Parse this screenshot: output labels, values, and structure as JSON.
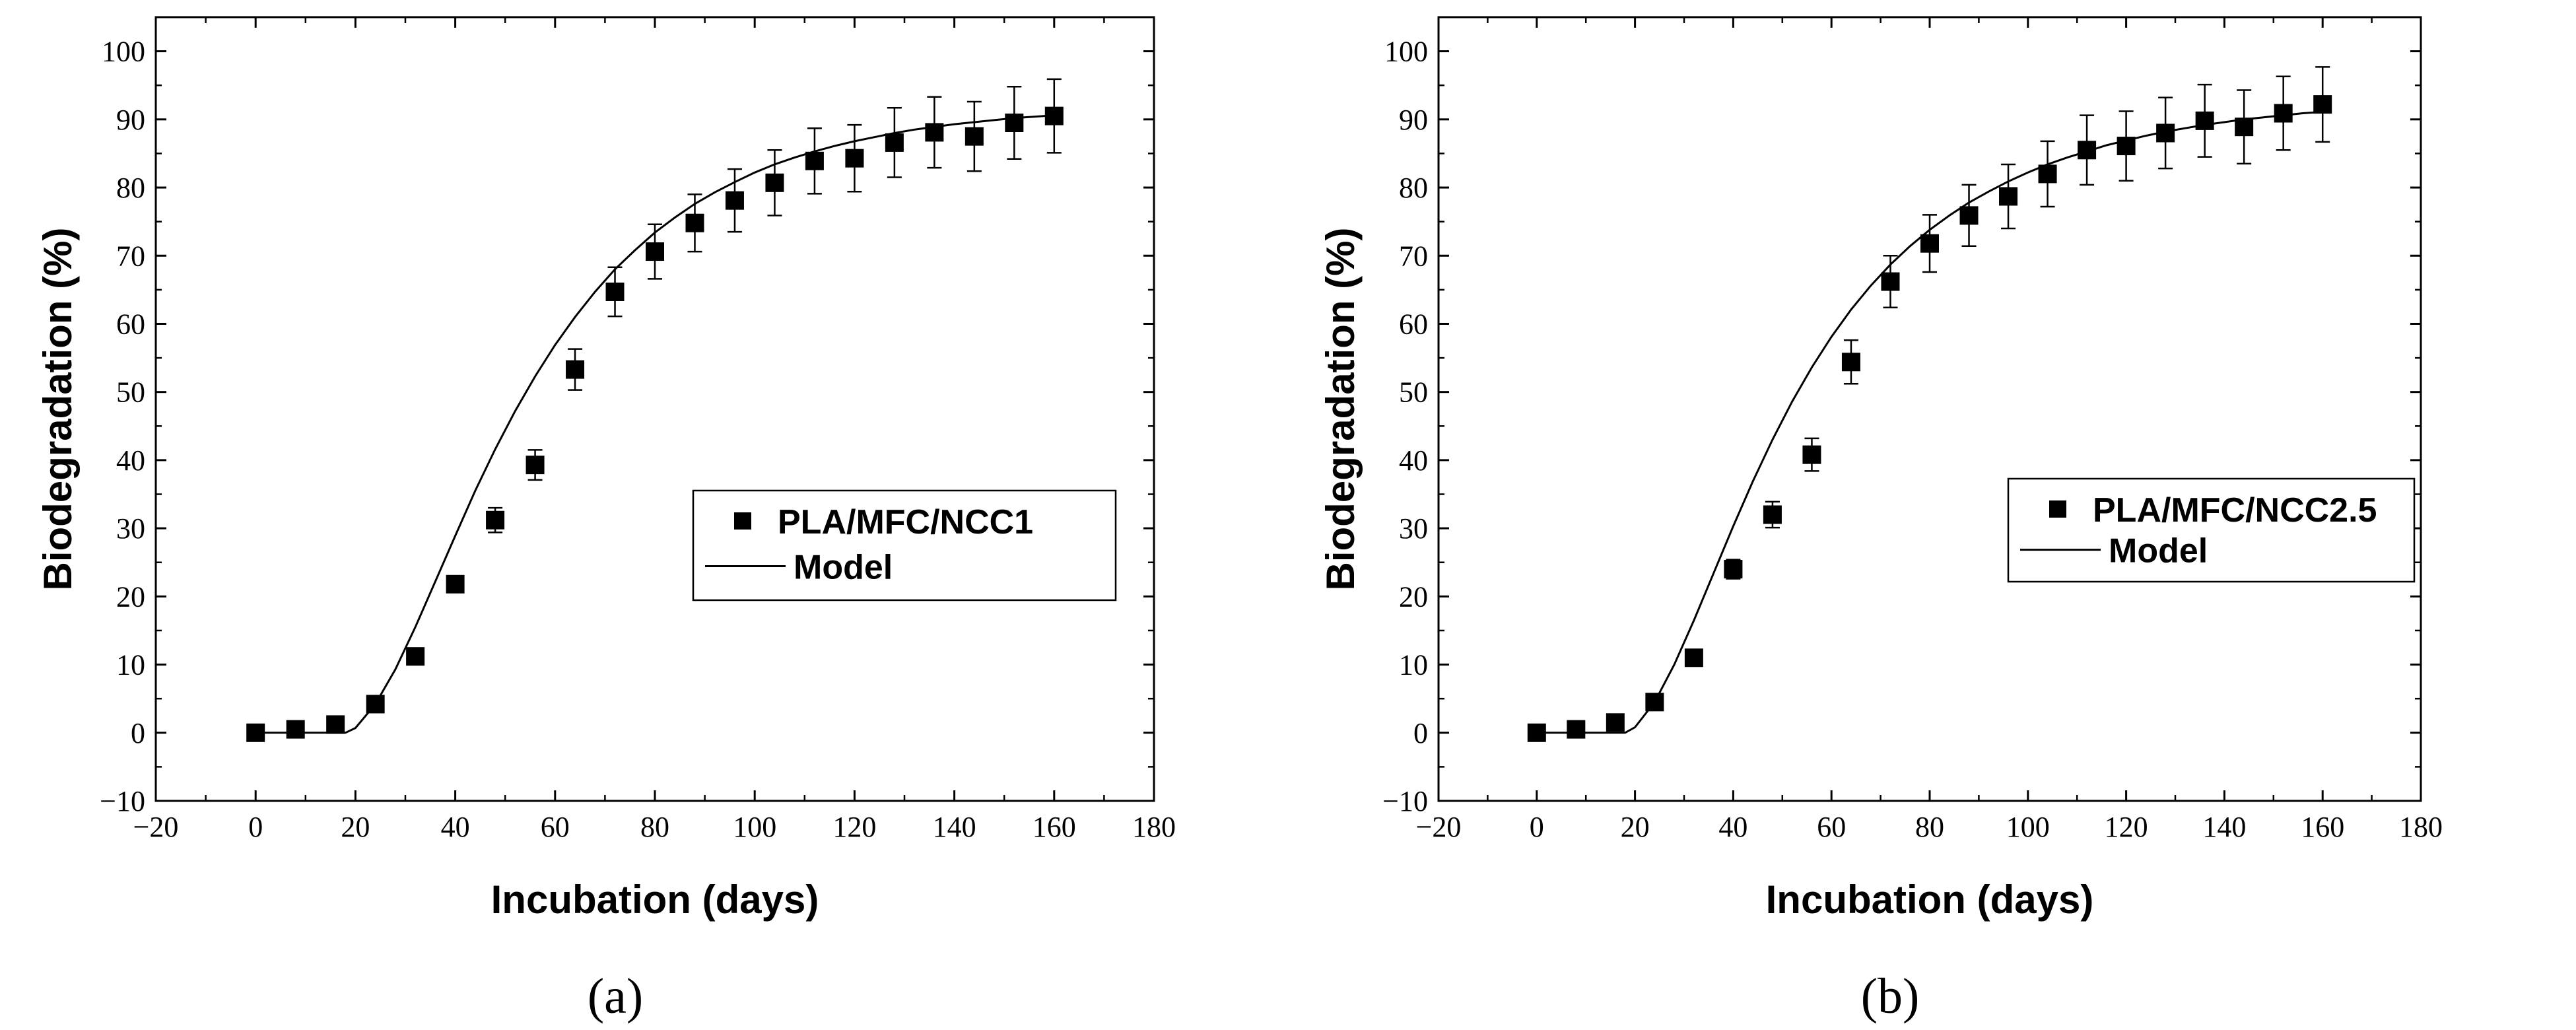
{
  "chart_data": [
    {
      "type": "scatter",
      "panel_label": "(a)",
      "xlabel": "Incubation (days)",
      "ylabel": "Biodegradation (%)",
      "xlim": [
        -20,
        180
      ],
      "ylim": [
        -10,
        105
      ],
      "xticks": [
        -20,
        0,
        20,
        40,
        60,
        80,
        100,
        120,
        140,
        160,
        180
      ],
      "xtick_labels": [
        "−20",
        "0",
        "20",
        "40",
        "60",
        "80",
        "100",
        "120",
        "140",
        "160",
        "180"
      ],
      "yticks": [
        -10,
        0,
        10,
        20,
        30,
        40,
        50,
        60,
        70,
        80,
        90,
        100
      ],
      "ytick_labels": [
        "−10",
        "0",
        "10",
        "20",
        "30",
        "40",
        "50",
        "60",
        "70",
        "80",
        "90",
        "100"
      ],
      "legend_position": "center-right",
      "series": [
        {
          "name": "PLA/MFC/NCC1",
          "kind": "scatter-errorbar",
          "x": [
            0,
            8,
            16,
            24,
            32,
            40,
            48,
            56,
            64,
            72,
            80,
            88,
            96,
            104,
            112,
            120,
            128,
            136,
            144,
            152,
            160
          ],
          "y": [
            0,
            0.5,
            1.2,
            4.2,
            11.2,
            21.8,
            31.2,
            39.3,
            53.3,
            64.7,
            70.6,
            74.8,
            78.1,
            80.7,
            83.9,
            84.3,
            86.6,
            88.1,
            87.5,
            89.5,
            90.5
          ],
          "err": [
            0,
            0,
            0,
            0,
            0.8,
            1.2,
            1.8,
            2.2,
            3.0,
            3.6,
            4.0,
            4.2,
            4.6,
            4.8,
            4.8,
            4.9,
            5.1,
            5.2,
            5.1,
            5.3,
            5.4
          ]
        },
        {
          "name": "Model",
          "kind": "line",
          "x": [
            0,
            8,
            16,
            18,
            20,
            24,
            28,
            32,
            36,
            40,
            44,
            48,
            52,
            56,
            60,
            64,
            68,
            72,
            76,
            80,
            84,
            88,
            92,
            96,
            100,
            104,
            108,
            112,
            116,
            120,
            124,
            128,
            132,
            136,
            140,
            144,
            148,
            152,
            156,
            160
          ],
          "y": [
            0,
            0,
            0,
            0,
            0.7,
            4.2,
            9.3,
            15.5,
            22.2,
            28.9,
            35.5,
            41.6,
            47.2,
            52.3,
            56.9,
            61.0,
            64.7,
            68.0,
            70.8,
            73.4,
            75.6,
            77.6,
            79.3,
            80.8,
            82.2,
            83.4,
            84.4,
            85.3,
            86.1,
            86.8,
            87.4,
            88.0,
            88.5,
            88.9,
            89.3,
            89.6,
            89.9,
            90.2,
            90.4,
            90.6
          ]
        }
      ]
    },
    {
      "type": "scatter",
      "panel_label": "(b)",
      "xlabel": "Incubation (days)",
      "ylabel": "Biodegradation (%)",
      "xlim": [
        -20,
        180
      ],
      "ylim": [
        -10,
        105
      ],
      "xticks": [
        -20,
        0,
        20,
        40,
        60,
        80,
        100,
        120,
        140,
        160,
        180
      ],
      "xtick_labels": [
        "−20",
        "0",
        "20",
        "40",
        "60",
        "80",
        "100",
        "120",
        "140",
        "160",
        "180"
      ],
      "yticks": [
        -10,
        0,
        10,
        20,
        30,
        40,
        50,
        60,
        70,
        80,
        90,
        100
      ],
      "ytick_labels": [
        "−10",
        "0",
        "10",
        "20",
        "30",
        "40",
        "50",
        "60",
        "70",
        "80",
        "90",
        "100"
      ],
      "legend_position": "center-right",
      "series": [
        {
          "name": "PLA/MFC/NCC2.5",
          "kind": "scatter-errorbar",
          "x": [
            0,
            8,
            16,
            24,
            32,
            40,
            48,
            56,
            64,
            72,
            80,
            88,
            96,
            104,
            112,
            120,
            128,
            136,
            144,
            152,
            160
          ],
          "y": [
            0,
            0.5,
            1.5,
            4.5,
            11.0,
            24.0,
            32.0,
            40.8,
            54.4,
            66.2,
            71.8,
            75.9,
            78.7,
            82.0,
            85.5,
            86.1,
            88.0,
            89.8,
            88.9,
            90.9,
            92.2
          ],
          "err": [
            0,
            0,
            0,
            0,
            0.8,
            1.4,
            1.9,
            2.4,
            3.2,
            3.8,
            4.2,
            4.5,
            4.7,
            4.8,
            5.1,
            5.1,
            5.2,
            5.3,
            5.4,
            5.4,
            5.5
          ]
        },
        {
          "name": "Model",
          "kind": "line",
          "x": [
            0,
            8,
            16,
            18,
            20,
            24,
            28,
            32,
            36,
            40,
            44,
            48,
            52,
            56,
            60,
            64,
            68,
            72,
            76,
            80,
            84,
            88,
            92,
            96,
            100,
            104,
            108,
            112,
            116,
            120,
            124,
            128,
            132,
            136,
            140,
            144,
            148,
            152,
            156,
            160
          ],
          "y": [
            0,
            0,
            0,
            0,
            0.8,
            4.5,
            10.0,
            16.5,
            23.4,
            30.3,
            36.9,
            43.0,
            48.6,
            53.6,
            58.1,
            62.1,
            65.6,
            68.7,
            71.4,
            73.8,
            75.9,
            77.8,
            79.4,
            80.9,
            82.2,
            83.4,
            84.4,
            85.3,
            86.2,
            86.9,
            87.6,
            88.2,
            88.7,
            89.2,
            89.6,
            90.0,
            90.3,
            90.6,
            90.9,
            91.1
          ]
        }
      ]
    }
  ]
}
